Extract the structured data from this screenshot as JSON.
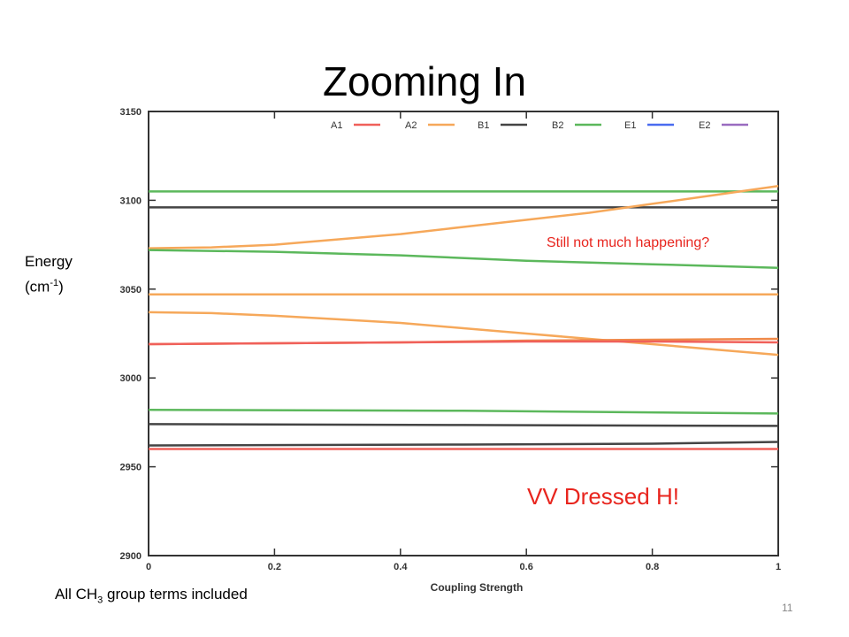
{
  "slide": {
    "title": "Zooming In",
    "ylabel_word": "Energy",
    "ylabel_unit_pre": "(cm",
    "ylabel_unit_sup": "-1",
    "ylabel_unit_post": ")",
    "annotation_top": "Still not much happening?",
    "annotation_big": "VV Dressed H!",
    "footer_pre": "All CH",
    "footer_sub": "3",
    "footer_post": " group terms included",
    "page_number": "11"
  },
  "chart_data": {
    "type": "line",
    "title": "",
    "xlabel": "Coupling Strength",
    "ylabel": "",
    "xlim": [
      0,
      1
    ],
    "ylim": [
      2900,
      3150
    ],
    "x_ticks": [
      "0",
      "0.2",
      "0.4",
      "0.6",
      "0.8",
      "1"
    ],
    "y_ticks": [
      "2900",
      "2950",
      "3000",
      "3050",
      "3100",
      "3150"
    ],
    "legend_position": "top",
    "legend": [
      {
        "name": "A1",
        "color": "#f0605a"
      },
      {
        "name": "A2",
        "color": "#f6a85a"
      },
      {
        "name": "B1",
        "color": "#444444"
      },
      {
        "name": "B2",
        "color": "#5cb85c"
      },
      {
        "name": "E1",
        "color": "#4a6cf0"
      },
      {
        "name": "E2",
        "color": "#9a6cc0"
      }
    ],
    "lines": [
      {
        "color": "#5cb85c",
        "x": [
          0,
          0.5,
          1
        ],
        "y": [
          3105,
          3105,
          3105
        ]
      },
      {
        "color": "#444444",
        "x": [
          0,
          0.5,
          1
        ],
        "y": [
          3096,
          3096,
          3096
        ]
      },
      {
        "color": "#f6a85a",
        "x": [
          0,
          0.1,
          0.2,
          0.3,
          0.4,
          0.5,
          0.6,
          0.7,
          0.8,
          0.9,
          1
        ],
        "y": [
          3073,
          3073.5,
          3075,
          3078,
          3081,
          3085,
          3089,
          3093,
          3098,
          3103,
          3108
        ]
      },
      {
        "color": "#5cb85c",
        "x": [
          0,
          0.2,
          0.4,
          0.6,
          0.8,
          1
        ],
        "y": [
          3072,
          3071,
          3069,
          3066,
          3064,
          3062
        ]
      },
      {
        "color": "#f6a85a",
        "x": [
          0,
          0.5,
          1
        ],
        "y": [
          3047,
          3047,
          3047
        ]
      },
      {
        "color": "#f6a85a",
        "x": [
          0,
          0.1,
          0.2,
          0.3,
          0.4,
          0.5,
          0.6,
          0.7,
          0.8,
          0.9,
          1
        ],
        "y": [
          3037,
          3036.5,
          3035,
          3033,
          3031,
          3028,
          3025,
          3022,
          3019,
          3016,
          3013
        ]
      },
      {
        "color": "#f08a4a",
        "x": [
          0,
          0.2,
          0.4,
          0.6,
          0.8,
          1
        ],
        "y": [
          3019,
          3019.5,
          3020,
          3021,
          3021.5,
          3022
        ]
      },
      {
        "color": "#f0605a",
        "x": [
          0,
          0.2,
          0.4,
          0.6,
          0.8,
          1
        ],
        "y": [
          3019,
          3019.5,
          3020,
          3020.5,
          3020.5,
          3020
        ]
      },
      {
        "color": "#5cb85c",
        "x": [
          0,
          0.5,
          1
        ],
        "y": [
          2982,
          2981.5,
          2980
        ]
      },
      {
        "color": "#444444",
        "x": [
          0,
          0.5,
          1
        ],
        "y": [
          2974,
          2973.5,
          2973
        ]
      },
      {
        "color": "#444444",
        "x": [
          0,
          0.5,
          0.8,
          1
        ],
        "y": [
          2962,
          2962.5,
          2963,
          2964
        ]
      },
      {
        "color": "#f0605a",
        "x": [
          0,
          0.5,
          1
        ],
        "y": [
          2960,
          2960,
          2960
        ]
      }
    ]
  }
}
